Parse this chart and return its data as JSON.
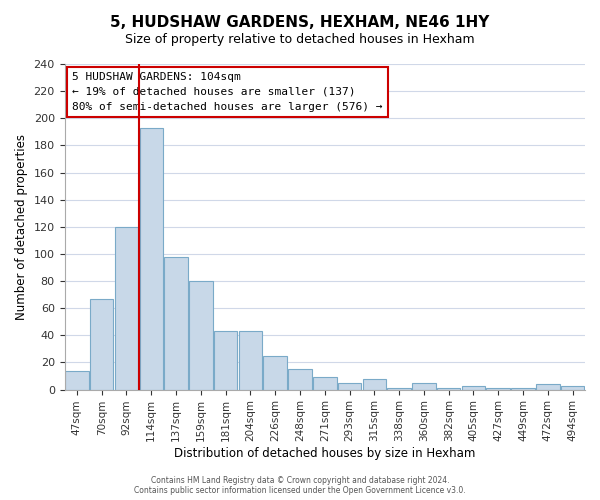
{
  "title": "5, HUDSHAW GARDENS, HEXHAM, NE46 1HY",
  "subtitle": "Size of property relative to detached houses in Hexham",
  "xlabel": "Distribution of detached houses by size in Hexham",
  "ylabel": "Number of detached properties",
  "bar_color": "#c8d8e8",
  "bar_edge_color": "#7aaac8",
  "categories": [
    "47sqm",
    "70sqm",
    "92sqm",
    "114sqm",
    "137sqm",
    "159sqm",
    "181sqm",
    "204sqm",
    "226sqm",
    "248sqm",
    "271sqm",
    "293sqm",
    "315sqm",
    "338sqm",
    "360sqm",
    "382sqm",
    "405sqm",
    "427sqm",
    "449sqm",
    "472sqm",
    "494sqm"
  ],
  "values": [
    14,
    67,
    120,
    193,
    98,
    80,
    43,
    43,
    25,
    15,
    9,
    5,
    8,
    1,
    5,
    1,
    3,
    1,
    1,
    4,
    3
  ],
  "ylim": [
    0,
    240
  ],
  "yticks": [
    0,
    20,
    40,
    60,
    80,
    100,
    120,
    140,
    160,
    180,
    200,
    220,
    240
  ],
  "vline_pos": 2.5,
  "vline_color": "#cc0000",
  "annotation_title": "5 HUDSHAW GARDENS: 104sqm",
  "annotation_line1": "← 19% of detached houses are smaller (137)",
  "annotation_line2": "80% of semi-detached houses are larger (576) →",
  "annotation_box_color": "#ffffff",
  "annotation_box_edge": "#cc0000",
  "footer1": "Contains HM Land Registry data © Crown copyright and database right 2024.",
  "footer2": "Contains public sector information licensed under the Open Government Licence v3.0.",
  "background_color": "#ffffff",
  "grid_color": "#d0d8e8"
}
